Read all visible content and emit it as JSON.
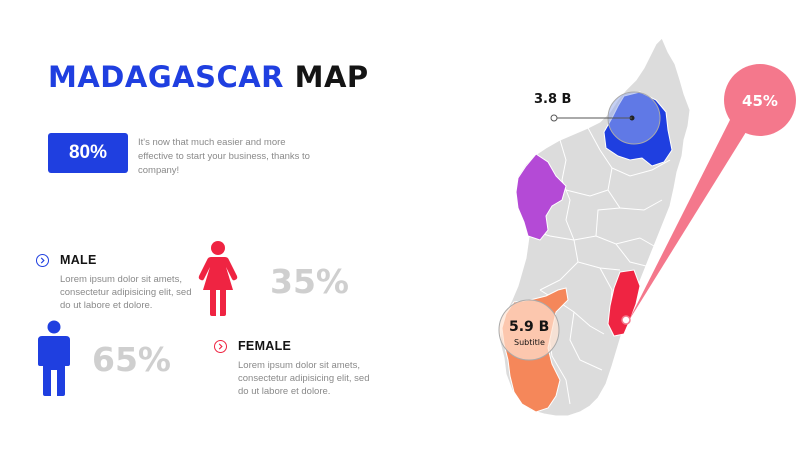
{
  "title": {
    "part1": "MADAGASCAR",
    "part2": "MAP"
  },
  "stat": {
    "value": "80%",
    "description": "It's now that much easier and more effective to start your business, thanks to company!"
  },
  "male": {
    "label": "MALE",
    "text": "Lorem ipsum dolor sit amets, consectetur adipisicing elit, sed do ut labore et dolore.",
    "percent": "65%"
  },
  "female": {
    "label": "FEMALE",
    "text": "Lorem ipsum dolor sit amets, consectetur adipisicing elit, sed do ut labore et dolore.",
    "percent": "35%"
  },
  "map": {
    "north_callout": {
      "value": "3.8 B"
    },
    "south_callout": {
      "value": "5.9 B",
      "subtitle": "Subtitle"
    },
    "east_callout": {
      "value": "45%"
    }
  },
  "colors": {
    "blue": "#1f3fe0",
    "purple": "#b44ad6",
    "red": "#ef2442",
    "orange": "#f5875a",
    "pink": "#f4788c",
    "land": "#dcdcdc"
  }
}
